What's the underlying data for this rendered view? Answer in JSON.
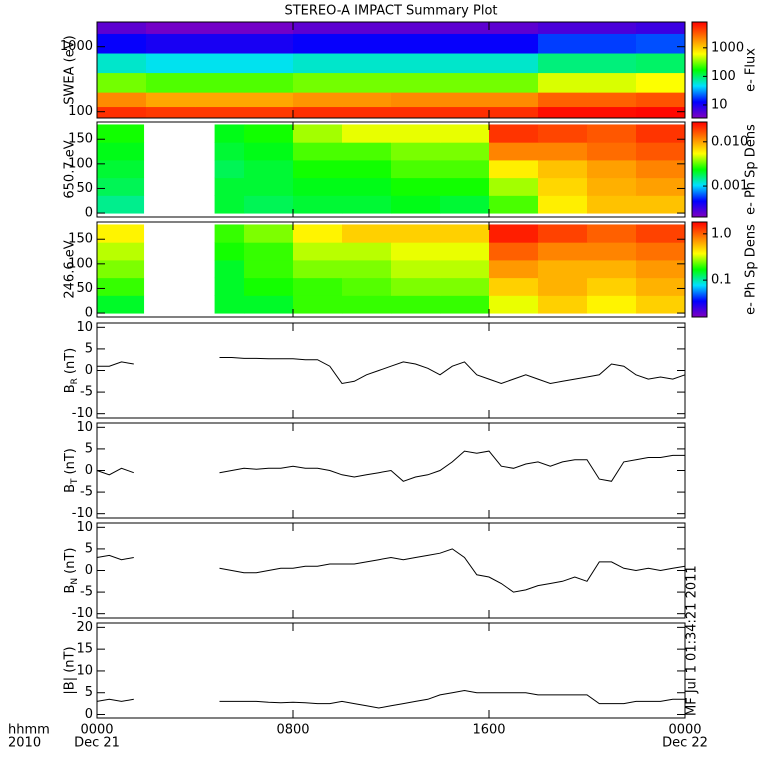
{
  "chart_data": [
    {
      "type": "heatmap",
      "title": "STEREO-A IMPACT Summary Plot",
      "ylabel": "SWEA (eV)",
      "ylog": true,
      "xlim": [
        0,
        24
      ],
      "xticks": [
        0,
        8,
        16,
        24
      ],
      "ylim": [
        80,
        2400
      ],
      "yticks": [
        100,
        1000
      ],
      "x_edges": [
        0,
        2,
        4,
        6,
        8,
        10,
        12,
        14,
        16,
        18,
        20,
        22,
        24
      ],
      "y_edges": [
        80,
        120,
        200,
        400,
        800,
        1600,
        2400
      ],
      "z": [
        [
          5000,
          4500,
          4500,
          4500,
          5000,
          5000,
          5000,
          5000,
          5000,
          7000,
          7000,
          7500
        ],
        [
          2000,
          1500,
          1500,
          1500,
          1800,
          1800,
          2000,
          2000,
          2000,
          3000,
          3000,
          3500
        ],
        [
          300,
          250,
          250,
          250,
          300,
          300,
          300,
          300,
          300,
          500,
          500,
          600
        ],
        [
          60,
          50,
          50,
          50,
          60,
          60,
          60,
          60,
          60,
          90,
          90,
          100
        ],
        [
          12,
          10,
          10,
          10,
          12,
          12,
          12,
          12,
          12,
          18,
          18,
          20
        ],
        [
          5,
          4,
          4,
          4,
          5,
          5,
          5,
          5,
          5,
          6,
          6,
          7
        ]
      ],
      "zlim": [
        3.5,
        8000
      ],
      "zticks": [
        10,
        100,
        1000
      ],
      "zlabel": "e- Flux",
      "colormap": [
        "#8000c0",
        "#0000ff",
        "#00e0ff",
        "#00ff00",
        "#ffff00",
        "#ff8000",
        "#ff0000"
      ]
    },
    {
      "type": "heatmap",
      "ylabel": "650.7 eV",
      "xlim": [
        0,
        24
      ],
      "xticks": [
        0,
        8,
        16,
        24
      ],
      "ylim": [
        -8,
        185
      ],
      "yticks": [
        0,
        50,
        100,
        150
      ],
      "x_edges": [
        0,
        1.9,
        4.8,
        6,
        8,
        10,
        12,
        14,
        16,
        18,
        20,
        22,
        24
      ],
      "y_edges": [
        0,
        36,
        72,
        108,
        144,
        180
      ],
      "z": [
        [
          0.0015,
          null,
          0.002,
          0.0018,
          0.002,
          0.002,
          0.0022,
          0.002,
          0.003,
          0.006,
          0.008,
          0.008
        ],
        [
          0.0018,
          null,
          0.002,
          0.002,
          0.0022,
          0.0022,
          0.0025,
          0.0025,
          0.004,
          0.007,
          0.009,
          0.01
        ],
        [
          0.002,
          null,
          0.0018,
          0.002,
          0.0025,
          0.0025,
          0.003,
          0.003,
          0.006,
          0.008,
          0.01,
          0.012
        ],
        [
          0.0022,
          null,
          0.002,
          0.0022,
          0.003,
          0.003,
          0.0035,
          0.0035,
          0.012,
          0.012,
          0.014,
          0.016
        ],
        [
          0.0025,
          null,
          0.0022,
          0.0025,
          0.004,
          0.005,
          0.005,
          0.005,
          0.02,
          0.018,
          0.016,
          0.02
        ]
      ],
      "zlim": [
        0.0002,
        0.028
      ],
      "zticks": [
        0.001,
        {
          "value": 0.01,
          "label": "0.010"
        }
      ],
      "zlabel": "e- Ph Sp Dens",
      "colormap": [
        "#8000c0",
        "#0000ff",
        "#00e0ff",
        "#00ff00",
        "#ffff00",
        "#ff8000",
        "#ff0000"
      ]
    },
    {
      "type": "heatmap",
      "ylabel": "246.6 eV",
      "xlim": [
        0,
        24
      ],
      "xticks": [
        0,
        8,
        16,
        24
      ],
      "ylim": [
        -8,
        185
      ],
      "yticks": [
        0,
        50,
        100,
        150
      ],
      "x_edges": [
        0,
        1.9,
        4.8,
        6,
        8,
        10,
        12,
        14,
        16,
        18,
        20,
        22,
        24
      ],
      "y_edges": [
        0,
        36,
        72,
        108,
        144,
        180
      ],
      "z": [
        [
          0.15,
          null,
          0.15,
          0.15,
          0.2,
          0.2,
          0.2,
          0.2,
          0.35,
          0.5,
          0.4,
          0.5
        ],
        [
          0.2,
          null,
          0.15,
          0.18,
          0.2,
          0.22,
          0.25,
          0.25,
          0.5,
          0.6,
          0.5,
          0.6
        ],
        [
          0.25,
          null,
          0.15,
          0.2,
          0.25,
          0.25,
          0.3,
          0.3,
          0.7,
          0.6,
          0.6,
          0.7
        ],
        [
          0.3,
          null,
          0.18,
          0.2,
          0.3,
          0.3,
          0.35,
          0.35,
          1.0,
          0.8,
          0.8,
          0.9
        ],
        [
          0.4,
          null,
          0.2,
          0.25,
          0.4,
          0.5,
          0.5,
          0.5,
          1.5,
          1.2,
          1.0,
          1.2
        ]
      ],
      "zlim": [
        0.016,
        1.8
      ],
      "zticks": [
        0.1,
        {
          "value": 1,
          "label": "1.0"
        }
      ],
      "zlabel": "e- Ph Sp Dens",
      "colormap": [
        "#8000c0",
        "#0000ff",
        "#00e0ff",
        "#00ff00",
        "#ffff00",
        "#ff8000",
        "#ff0000"
      ]
    },
    {
      "type": "line",
      "ylabel": "B",
      "ylabel_sub": "R",
      "ylabel_unit": "(nT)",
      "color": "#000000",
      "xlim": [
        0,
        24
      ],
      "xticks": [
        0,
        8,
        16,
        24
      ],
      "ylim": [
        -11,
        11
      ],
      "yticks": [
        -10,
        -5,
        0,
        5,
        10
      ],
      "x": [
        0,
        0.5,
        1,
        1.5,
        2,
        2.5,
        3,
        3.5,
        4,
        4.5,
        5,
        5.5,
        6,
        6.5,
        7,
        7.5,
        8,
        8.5,
        9,
        9.5,
        10,
        10.5,
        11,
        11.5,
        12,
        12.5,
        13,
        13.5,
        14,
        14.5,
        15,
        15.5,
        16,
        16.5,
        17,
        17.5,
        18,
        18.5,
        19,
        19.5,
        20,
        20.5,
        21,
        21.5,
        22,
        22.5,
        23,
        23.5,
        24
      ],
      "values": [
        1,
        1,
        2,
        1.5,
        null,
        null,
        null,
        null,
        null,
        null,
        3,
        3,
        2.8,
        2.8,
        2.7,
        2.7,
        2.7,
        2.5,
        2.5,
        1,
        -3,
        -2.5,
        -1,
        0,
        1,
        2,
        1.5,
        0.5,
        -1,
        1,
        2,
        -1,
        -2,
        -3,
        -2,
        -1,
        -2,
        -3,
        -2.5,
        -2,
        -1.5,
        -1,
        1.5,
        1,
        -1,
        -2,
        -1.5,
        -2,
        -1
      ]
    },
    {
      "type": "line",
      "ylabel": "B",
      "ylabel_sub": "T",
      "ylabel_unit": "(nT)",
      "color": "#000000",
      "xlim": [
        0,
        24
      ],
      "xticks": [
        0,
        8,
        16,
        24
      ],
      "ylim": [
        -11,
        11
      ],
      "yticks": [
        -10,
        -5,
        0,
        5,
        10
      ],
      "x": [
        0,
        0.5,
        1,
        1.5,
        2,
        2.5,
        3,
        3.5,
        4,
        4.5,
        5,
        5.5,
        6,
        6.5,
        7,
        7.5,
        8,
        8.5,
        9,
        9.5,
        10,
        10.5,
        11,
        11.5,
        12,
        12.5,
        13,
        13.5,
        14,
        14.5,
        15,
        15.5,
        16,
        16.5,
        17,
        17.5,
        18,
        18.5,
        19,
        19.5,
        20,
        20.5,
        21,
        21.5,
        22,
        22.5,
        23,
        23.5,
        24
      ],
      "values": [
        0,
        -1,
        0.5,
        -0.5,
        null,
        null,
        null,
        null,
        null,
        null,
        -0.5,
        0,
        0.5,
        0.3,
        0.5,
        0.5,
        1,
        0.5,
        0.5,
        0,
        -1,
        -1.5,
        -1,
        -0.5,
        0,
        -2.5,
        -1.5,
        -1,
        0,
        2,
        4.5,
        4,
        4.5,
        1,
        0.5,
        1.5,
        2,
        1,
        2,
        2.5,
        2.5,
        -2,
        -2.5,
        2,
        2.5,
        3,
        3,
        3.5,
        3.5
      ]
    },
    {
      "type": "line",
      "ylabel": "B",
      "ylabel_sub": "N",
      "ylabel_unit": "(nT)",
      "color": "#000000",
      "xlim": [
        0,
        24
      ],
      "xticks": [
        0,
        8,
        16,
        24
      ],
      "ylim": [
        -11,
        11
      ],
      "yticks": [
        -10,
        -5,
        0,
        5,
        10
      ],
      "x": [
        0,
        0.5,
        1,
        1.5,
        2,
        2.5,
        3,
        3.5,
        4,
        4.5,
        5,
        5.5,
        6,
        6.5,
        7,
        7.5,
        8,
        8.5,
        9,
        9.5,
        10,
        10.5,
        11,
        11.5,
        12,
        12.5,
        13,
        13.5,
        14,
        14.5,
        15,
        15.5,
        16,
        16.5,
        17,
        17.5,
        18,
        18.5,
        19,
        19.5,
        20,
        20.5,
        21,
        21.5,
        22,
        22.5,
        23,
        23.5,
        24
      ],
      "values": [
        3,
        3.5,
        2.5,
        3,
        null,
        null,
        null,
        null,
        null,
        null,
        0.5,
        0,
        -0.5,
        -0.5,
        0,
        0.5,
        0.5,
        1,
        1,
        1.5,
        1.5,
        1.5,
        2,
        2.5,
        3,
        2.5,
        3,
        3.5,
        4,
        5,
        3,
        -1,
        -1.5,
        -3,
        -5,
        -4.5,
        -3.5,
        -3,
        -2.5,
        -1.5,
        -2.5,
        2,
        2,
        0.5,
        0,
        0.5,
        0,
        0.5,
        1
      ]
    },
    {
      "type": "line",
      "ylabel": "|B| (nT)",
      "color": "#000000",
      "xlim": [
        0,
        24
      ],
      "ylim": [
        -0.8,
        21
      ],
      "yticks": [
        0,
        5,
        10,
        15,
        20
      ],
      "xticks": [
        {
          "value": 0,
          "label": "0000"
        },
        {
          "value": 8,
          "label": "0800"
        },
        {
          "value": 16,
          "label": "1600"
        },
        {
          "value": 24,
          "label": "0000"
        }
      ],
      "xtick_sublabels": [
        "Dec 21",
        null,
        null,
        "Dec 22"
      ],
      "xlabel": "hhmm",
      "xlabel2": "2010",
      "annotation": "MF Jul 1 01:34:21 2011",
      "x": [
        0,
        0.5,
        1,
        1.5,
        2,
        2.5,
        3,
        3.5,
        4,
        4.5,
        5,
        5.5,
        6,
        6.5,
        7,
        7.5,
        8,
        8.5,
        9,
        9.5,
        10,
        10.5,
        11,
        11.5,
        12,
        12.5,
        13,
        13.5,
        14,
        14.5,
        15,
        15.5,
        16,
        16.5,
        17,
        17.5,
        18,
        18.5,
        19,
        19.5,
        20,
        20.5,
        21,
        21.5,
        22,
        22.5,
        23,
        23.5,
        24
      ],
      "values": [
        3,
        3.5,
        3,
        3.5,
        null,
        null,
        null,
        null,
        null,
        null,
        3,
        3,
        3,
        3,
        2.8,
        2.7,
        2.8,
        2.7,
        2.5,
        2.5,
        3,
        2.5,
        2,
        1.5,
        2,
        2.5,
        3,
        3.5,
        4.5,
        5,
        5.5,
        5,
        5,
        5,
        5,
        5,
        4.5,
        4.5,
        4.5,
        4.5,
        4.5,
        2.5,
        2.5,
        2.5,
        3,
        3,
        3,
        3.5,
        3.5
      ]
    }
  ]
}
